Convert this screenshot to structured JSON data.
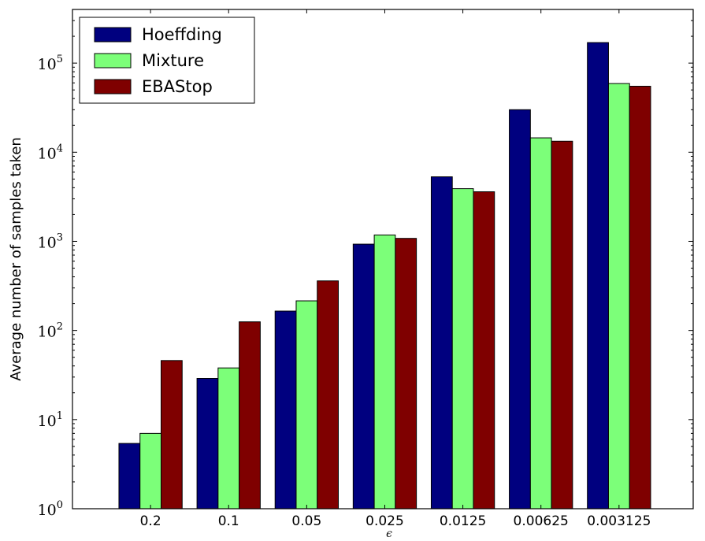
{
  "chart_data": {
    "type": "bar",
    "title": "",
    "xlabel": "ϵ",
    "ylabel": "Average number of samples taken",
    "yscale": "log",
    "ylim": [
      1,
      400000
    ],
    "grid": false,
    "legend_position": "top-left",
    "categories": [
      "0.2",
      "0.1",
      "0.05",
      "0.025",
      "0.0125",
      "0.00625",
      "0.003125"
    ],
    "y_ticks": [
      {
        "base": "10",
        "exp": "0"
      },
      {
        "base": "10",
        "exp": "1"
      },
      {
        "base": "10",
        "exp": "2"
      },
      {
        "base": "10",
        "exp": "3"
      },
      {
        "base": "10",
        "exp": "4"
      },
      {
        "base": "10",
        "exp": "5"
      }
    ],
    "series": [
      {
        "name": "Hoeffding",
        "color": "#00007f",
        "values": [
          5.4,
          29,
          165,
          930,
          5300,
          30000,
          170000
        ]
      },
      {
        "name": "Mixture",
        "color": "#7cff79",
        "values": [
          7,
          38,
          215,
          1180,
          3900,
          14500,
          59000
        ]
      },
      {
        "name": "EBAStop",
        "color": "#7f0000",
        "values": [
          46,
          125,
          360,
          1080,
          3600,
          13300,
          55000
        ]
      }
    ]
  }
}
